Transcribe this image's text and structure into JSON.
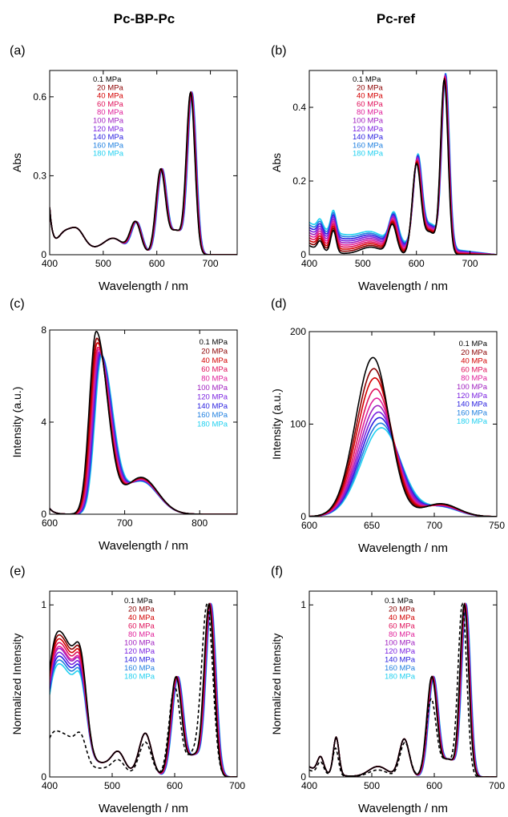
{
  "column_titles": [
    "Pc-BP-Pc",
    "Pc-ref"
  ],
  "pressures": [
    "0.1 MPa",
    "20 MPa",
    "40 MPa",
    "60 MPa",
    "80 MPa",
    "100 MPa",
    "120 MPa",
    "140 MPa",
    "160 MPa",
    "180 MPa"
  ],
  "colors": [
    "#000000",
    "#8b0000",
    "#d40000",
    "#e0105a",
    "#e0209a",
    "#a020c0",
    "#7a20e0",
    "#2a20e0",
    "#2080e0",
    "#20d0f0"
  ],
  "chart_data": [
    {
      "id": "a",
      "panel_label": "(a)",
      "type": "line",
      "column": "Pc-BP-Pc",
      "xlabel": "Wavelength / nm",
      "ylabel": "Abs",
      "xlim": [
        400,
        750
      ],
      "ylim": [
        0,
        0.7
      ],
      "xticks": [
        400,
        500,
        600,
        700
      ],
      "yticks": [
        0,
        0.3,
        0.6
      ],
      "yticklabels": [
        "0",
        "0.3",
        "0.6"
      ],
      "peaks": [
        {
          "x": 450,
          "y": 0.13
        },
        {
          "x": 560,
          "y": 0.14
        },
        {
          "x": 607,
          "y": 0.33
        },
        {
          "x": 663,
          "y": 0.61
        }
      ]
    },
    {
      "id": "b",
      "panel_label": "(b)",
      "type": "line",
      "column": "Pc-ref",
      "xlabel": "Wavelength / nm",
      "ylabel": "Abs",
      "xlim": [
        400,
        750
      ],
      "ylim": [
        0,
        0.5
      ],
      "xticks": [
        400,
        500,
        600,
        700
      ],
      "yticks": [
        0,
        0.2,
        0.4
      ],
      "yticklabels": [
        "0",
        "0.2",
        "0.4"
      ],
      "peaks": [
        {
          "x": 445,
          "y": 0.1
        },
        {
          "x": 555,
          "y": 0.1
        },
        {
          "x": 600,
          "y": 0.25
        },
        {
          "x": 652,
          "y": 0.48
        }
      ]
    },
    {
      "id": "c",
      "panel_label": "(c)",
      "type": "line",
      "column": "Pc-BP-Pc",
      "xlabel": "Wavelength / nm",
      "ylabel": "Intensity (a.u.)",
      "xlim": [
        600,
        850
      ],
      "ylim": [
        0,
        8
      ],
      "xticks": [
        600,
        700,
        800
      ],
      "yticks": [
        0,
        4,
        8
      ],
      "yticklabels": [
        "0",
        "4",
        "8"
      ],
      "peak_max": [
        7.9,
        7.6,
        7.4,
        7.2,
        7.1,
        7.0,
        6.95,
        6.9,
        6.85,
        6.8
      ],
      "shoulder_x": 720
    },
    {
      "id": "d",
      "panel_label": "(d)",
      "type": "line",
      "column": "Pc-ref",
      "xlabel": "Wavelength / nm",
      "ylabel": "Intensity (a.u.)",
      "xlim": [
        600,
        750
      ],
      "ylim": [
        0,
        200
      ],
      "xticks": [
        600,
        650,
        700,
        750
      ],
      "yticks": [
        0,
        100,
        200
      ],
      "yticklabels": [
        "0",
        "100",
        "200"
      ],
      "peak_max": [
        172,
        160,
        150,
        138,
        128,
        120,
        113,
        107,
        101,
        96
      ]
    },
    {
      "id": "e",
      "panel_label": "(e)",
      "type": "line",
      "column": "Pc-BP-Pc",
      "xlabel": "Wavelength / nm",
      "ylabel": "Normalized Intensity",
      "xlim": [
        400,
        700
      ],
      "ylim": [
        0,
        1.08
      ],
      "xticks": [
        400,
        500,
        600,
        700
      ],
      "yticks": [
        0,
        1
      ],
      "yticklabels": [
        "0",
        "1"
      ],
      "excitation_start": [
        0.75,
        0.73,
        0.71,
        0.69,
        0.67,
        0.66,
        0.64,
        0.62,
        0.6,
        0.58
      ],
      "dashed_reference": true
    },
    {
      "id": "f",
      "panel_label": "(f)",
      "type": "line",
      "column": "Pc-ref",
      "xlabel": "Wavelength / nm",
      "ylabel": "Normalized Intensity",
      "xlim": [
        400,
        700
      ],
      "ylim": [
        0,
        1.08
      ],
      "xticks": [
        400,
        500,
        600,
        700
      ],
      "yticks": [
        0,
        1
      ],
      "yticklabels": [
        "0",
        "1"
      ],
      "dashed_reference": true
    }
  ]
}
